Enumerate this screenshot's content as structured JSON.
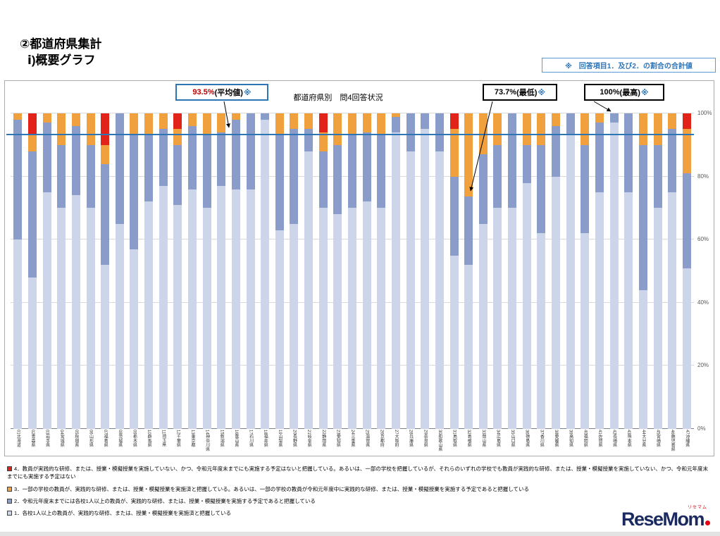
{
  "page": {
    "heading_line1": "②都道府県集計",
    "heading_line2": "ⅰ)概要グラフ",
    "note_box": "※　回答項目1．及び2．の割合の合計値"
  },
  "annotations": {
    "average": {
      "value": "93.5%",
      "label": "(平均値)",
      "mark": "※",
      "percent": 93.5
    },
    "min": {
      "value": "73.7%",
      "label": "(最低)",
      "mark": "※",
      "percent": 73.7,
      "target": "32島根県"
    },
    "max": {
      "value": "100%",
      "label": "(最高)",
      "mark": "※",
      "percent": 100
    }
  },
  "chart_data": {
    "type": "bar",
    "stacked": true,
    "title": "都道府県別　問4回答状況",
    "ylim": [
      0,
      100
    ],
    "grid": true,
    "average_line_percent": 93.5,
    "y_ticks": [
      {
        "label": "0%",
        "p": 0
      },
      {
        "label": "20%",
        "p": 20
      },
      {
        "label": "40%",
        "p": 40
      },
      {
        "label": "60%",
        "p": 60
      },
      {
        "label": "80%",
        "p": 80
      },
      {
        "label": "100%",
        "p": 100
      }
    ],
    "categories": [
      "01北海道",
      "02青森県",
      "03岩手県",
      "04宮城県",
      "05秋田県",
      "06山形県",
      "07福島県",
      "08茨城県",
      "09栃木県",
      "10群馬県",
      "11埼玉県",
      "12千葉県",
      "13東京都",
      "14神奈川県",
      "15新潟県",
      "16富山県",
      "17石川県",
      "18福井県",
      "19山梨県",
      "20長野県",
      "21岐阜県",
      "22静岡県",
      "23愛知県",
      "24三重県",
      "25滋賀県",
      "26京都府",
      "27大阪府",
      "28兵庫県",
      "29奈良県",
      "30和歌山県",
      "31鳥取県",
      "32島根県",
      "33岡山県",
      "34広島県",
      "35山口県",
      "36徳島県",
      "37香川県",
      "38愛媛県",
      "39高知県",
      "40福岡県",
      "41佐賀県",
      "42長崎県",
      "43熊本県",
      "44大分県",
      "45宮崎県",
      "46鹿児島県",
      "47沖縄県"
    ],
    "series": [
      {
        "key": "item1",
        "name": "1",
        "color": "#ccd5ea",
        "values": [
          60,
          48,
          75,
          70,
          74,
          70,
          52,
          65,
          57,
          72,
          77,
          71,
          76,
          70,
          77,
          76,
          76,
          98,
          63,
          65,
          88,
          70,
          68,
          70,
          72,
          70,
          94,
          88,
          95,
          88,
          55,
          52,
          65,
          70,
          70,
          78,
          62,
          80,
          93,
          62,
          75,
          97,
          75,
          44,
          70,
          75,
          51
        ]
      },
      {
        "key": "item2",
        "name": "2",
        "color": "#8a9cc9",
        "values": [
          38,
          40,
          22,
          20,
          22,
          20,
          32,
          35,
          36,
          21,
          18,
          19,
          20,
          23,
          17,
          22,
          24,
          2,
          30,
          30,
          7,
          18,
          22,
          23,
          22,
          23,
          5,
          12,
          5,
          12,
          25,
          21.7,
          22,
          20,
          30,
          12,
          28,
          16,
          7,
          28,
          22,
          3,
          25,
          46,
          20,
          20,
          30
        ]
      },
      {
        "key": "item3",
        "name": "3",
        "color": "#f0a13e",
        "values": [
          2,
          5,
          3,
          10,
          4,
          10,
          6,
          0,
          7,
          7,
          5,
          5,
          4,
          7,
          6,
          2,
          0,
          0,
          7,
          5,
          5,
          6,
          10,
          7,
          6,
          7,
          1,
          0,
          0,
          0,
          15,
          26.3,
          13,
          10,
          0,
          10,
          10,
          4,
          0,
          10,
          3,
          0,
          0,
          10,
          10,
          5,
          14
        ]
      },
      {
        "key": "item4",
        "name": "4",
        "color": "#e2231a",
        "values": [
          0,
          7,
          0,
          0,
          0,
          0,
          10,
          0,
          0,
          0,
          0,
          5,
          0,
          0,
          0,
          0,
          0,
          0,
          0,
          0,
          0,
          6,
          0,
          0,
          0,
          0,
          0,
          0,
          0,
          0,
          5,
          0,
          0,
          0,
          0,
          0,
          0,
          0,
          0,
          0,
          0,
          0,
          0,
          0,
          0,
          0,
          5
        ]
      }
    ]
  },
  "legend": {
    "items": [
      {
        "marker_color": "#e2231a",
        "text": "4．教員が実践的な研修、または、授業・模擬授業を実施していない、かつ、令和元年度末までにも実施する予定はないと把握している。あるいは、一部の学校を把握しているが、それらのいずれの学校でも教員が実践的な研修、または、授業・模擬授業を実施していない、かつ、令和元年度末までにも実施する予定はない"
      },
      {
        "marker_color": "#f0a13e",
        "text": "3．一部の学校の教員が、実践的な研修、または、授業・模擬授業を実施済と把握している。あるいは、一部の学校の教員が令和元年度中に実践的な研修、または、授業・模擬授業を実施する予定であると把握している"
      },
      {
        "marker_color": "#8a9cc9",
        "text": "2．令和元年度末までには各校1人以上の教員が、実践的な研修、または、授業・模擬授業を実施する予定であると把握している"
      },
      {
        "marker_color": "#ccd5ea",
        "text": "1．各校1人以上の教員が、実践的な研修、または、授業・模擬授業を実施済と把握している"
      }
    ]
  },
  "logo": {
    "text": "ReseMom",
    "sub": "リセマム"
  }
}
